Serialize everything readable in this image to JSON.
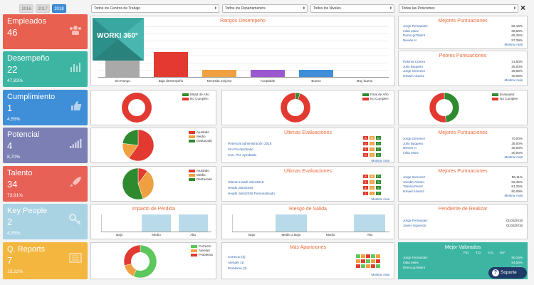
{
  "years": [
    "2016",
    "2017",
    "2018"
  ],
  "filters": [
    "Todos los Centros de Trabajo",
    "Todos los Departamentos",
    "Todos los Niveles",
    "Todas las Posiciones"
  ],
  "close": "×",
  "tiles": [
    {
      "title": "Empleados",
      "value": "46",
      "pct": "",
      "color": "#e8604f",
      "icon": "users-icon"
    },
    {
      "title": "Desempeño",
      "value": "22",
      "pct": "47,83%",
      "color": "#3db5a3",
      "icon": "bar-chart-icon"
    },
    {
      "title": "Cumplimiento",
      "value": "1",
      "pct": "4,55%",
      "color": "#3f8fd8",
      "icon": "thumbs-up-icon"
    },
    {
      "title": "Potencial",
      "value": "4",
      "pct": "8,70%",
      "color": "#7b7fb4",
      "icon": "signal-icon"
    },
    {
      "title": "Talento",
      "value": "34",
      "pct": "73,91%",
      "color": "#e86157",
      "icon": "rocket-icon"
    },
    {
      "title": "Key People",
      "value": "2",
      "pct": "4,35%",
      "color": "#a9d3e3",
      "icon": "key-icon"
    },
    {
      "title": "Q. Reports",
      "value": "7",
      "pct": "15,22%",
      "color": "#f3b63f",
      "icon": "report-icon"
    }
  ],
  "logo": "WORKI 360°",
  "rangos": {
    "title": "Rangos Desempeño",
    "categories": [
      "Sin Rango",
      "Bajo desempeño",
      "Necesita mejorar",
      "Aceptable",
      "Bueno",
      "Muy bueno"
    ],
    "values": [
      12,
      7,
      2,
      2,
      2,
      0
    ],
    "ymax": 14,
    "colors": [
      "#a9a9a9",
      "#e23a31",
      "#f0a040",
      "#9b59d0",
      "#3f8fd8",
      "#3db5a3"
    ]
  },
  "mejores1": {
    "title": "Mejores Puntuaciones",
    "rows": [
      [
        "Jorge Fernandez",
        "82,16%"
      ],
      [
        "mika estev",
        "68,50%"
      ],
      [
        "Demo goTalent",
        "65,36%"
      ],
      [
        "Nieves H",
        "57,39%"
      ]
    ],
    "more": "Mostrar más"
  },
  "peores": {
    "title": "Peores Puntuaciones",
    "rows": [
      [
        "Paloma Correa",
        "31,50%"
      ],
      [
        "Julio Baquero",
        "35,00%"
      ],
      [
        "Jorge Gimenez",
        "38,66%"
      ],
      [
        "Ismael Alvarez",
        "40,09%"
      ]
    ],
    "more": "Mostrar más"
  },
  "donuts": [
    {
      "legend": [
        "Mitad de Año",
        "No Cumplen"
      ],
      "colors": [
        "#2f8a2f",
        "#e23a31"
      ],
      "values": [
        0,
        100
      ]
    },
    {
      "legend": [
        "Final de Año",
        "No Cumplen"
      ],
      "colors": [
        "#2f8a2f",
        "#e23a31"
      ],
      "values": [
        5,
        95
      ]
    },
    {
      "legend": [
        "Evaluador",
        "No Cumplen"
      ],
      "colors": [
        "#2f8a2f",
        "#e23a31"
      ],
      "values": [
        48,
        52
      ]
    }
  ],
  "potencial_pie": {
    "legend": [
      "Ajustado",
      "Medio",
      "Destacado"
    ],
    "colors": [
      "#e23a31",
      "#f0a040",
      "#2f8a2f"
    ],
    "values": [
      60,
      17,
      23
    ]
  },
  "talento_pie": {
    "legend": [
      "Ajustado",
      "Medio",
      "Destacado"
    ],
    "colors": [
      "#e23a31",
      "#f0a040",
      "#2f8a2f"
    ],
    "values": [
      10,
      35,
      55
    ]
  },
  "ult1": {
    "title": "Últimas Evaluaciones",
    "heads": [
      "A",
      "M",
      "D"
    ],
    "rows": [
      [
        "Potencial administración 2018",
        [
          "0",
          "2",
          "0"
        ]
      ],
      [
        "Sin Pot Aprobado",
        [
          "1",
          "2",
          "0"
        ]
      ],
      [
        "Con. Pot. Aprobado",
        [
          "0",
          "0",
          "0"
        ]
      ]
    ],
    "more": "Mostrar más"
  },
  "ult2": {
    "title": "Últimas Evaluaciones",
    "heads": [
      "A",
      "M",
      "D"
    ],
    "rows": [
      [
        "Talento Headi Julio/2018",
        [
          "1",
          "2",
          "3"
        ]
      ],
      [
        "Heads Julio/2018",
        [
          "1",
          "3",
          "2"
        ]
      ],
      [
        "Heads Julio/2018 Personalizado",
        [
          "1",
          "3",
          "3"
        ]
      ]
    ],
    "more": "Mostrar más"
  },
  "mejores2": {
    "title": "Mejores Puntuaciones",
    "rows": [
      [
        "Jorge Gimenez",
        "70,00%"
      ],
      [
        "Julio Baquero",
        "35,00%"
      ],
      [
        "Nieves H",
        "35,00%"
      ],
      [
        "mika estev",
        "30,00%"
      ]
    ],
    "more": "Mostrar más"
  },
  "mejores3": {
    "title": "Mejores Puntuaciones",
    "rows": [
      [
        "Jorge Gimenez",
        "86,11%"
      ],
      [
        "Jacobo Alonso",
        "82,45%"
      ],
      [
        "Tatiana Perez",
        "81,25%"
      ],
      [
        "Ismael Alvarez",
        "80,09%"
      ]
    ],
    "more": "Mostrar más"
  },
  "impacto": {
    "title": "Impacto de Pérdida",
    "categories": [
      "Bajo",
      "Medio",
      "Alto"
    ],
    "values": [
      0,
      1,
      1
    ]
  },
  "riesgo": {
    "title": "Riesgo de Salida",
    "categories": [
      "Bajo",
      "Medio a Bajo",
      "Medio",
      "Alto"
    ],
    "values": [
      0,
      1,
      0,
      1
    ]
  },
  "pendiente": {
    "title": "Pendiente de Realizar",
    "rows": [
      [
        "Jorge Fernandez",
        "01/03/2018"
      ],
      [
        "Javier Izquierdo",
        "01/03/2018"
      ]
    ]
  },
  "qpie": {
    "legend": [
      "Correcto",
      "Atender",
      "Problema"
    ],
    "colors": [
      "#5cc75c",
      "#f0a040",
      "#e23a31"
    ],
    "values": [
      57,
      14,
      29
    ]
  },
  "mas": {
    "title": "Más Apariciones",
    "rows": [
      [
        "Correcto (3)"
      ],
      [
        "Atender (1)"
      ],
      [
        "Problema (3)"
      ]
    ],
    "more": "Mostrar más"
  },
  "valorados": {
    "title": "Mejor Valorados",
    "heads": [
      "P.D.",
      "T.D.",
      "V.G.",
      "M.F."
    ],
    "rows": [
      [
        "Jorge Fernandez",
        "90,16%"
      ],
      [
        "mika estev",
        "84,50%"
      ],
      [
        "Demo goTalent",
        "81,10%"
      ]
    ]
  },
  "soporte": "Soporte"
}
